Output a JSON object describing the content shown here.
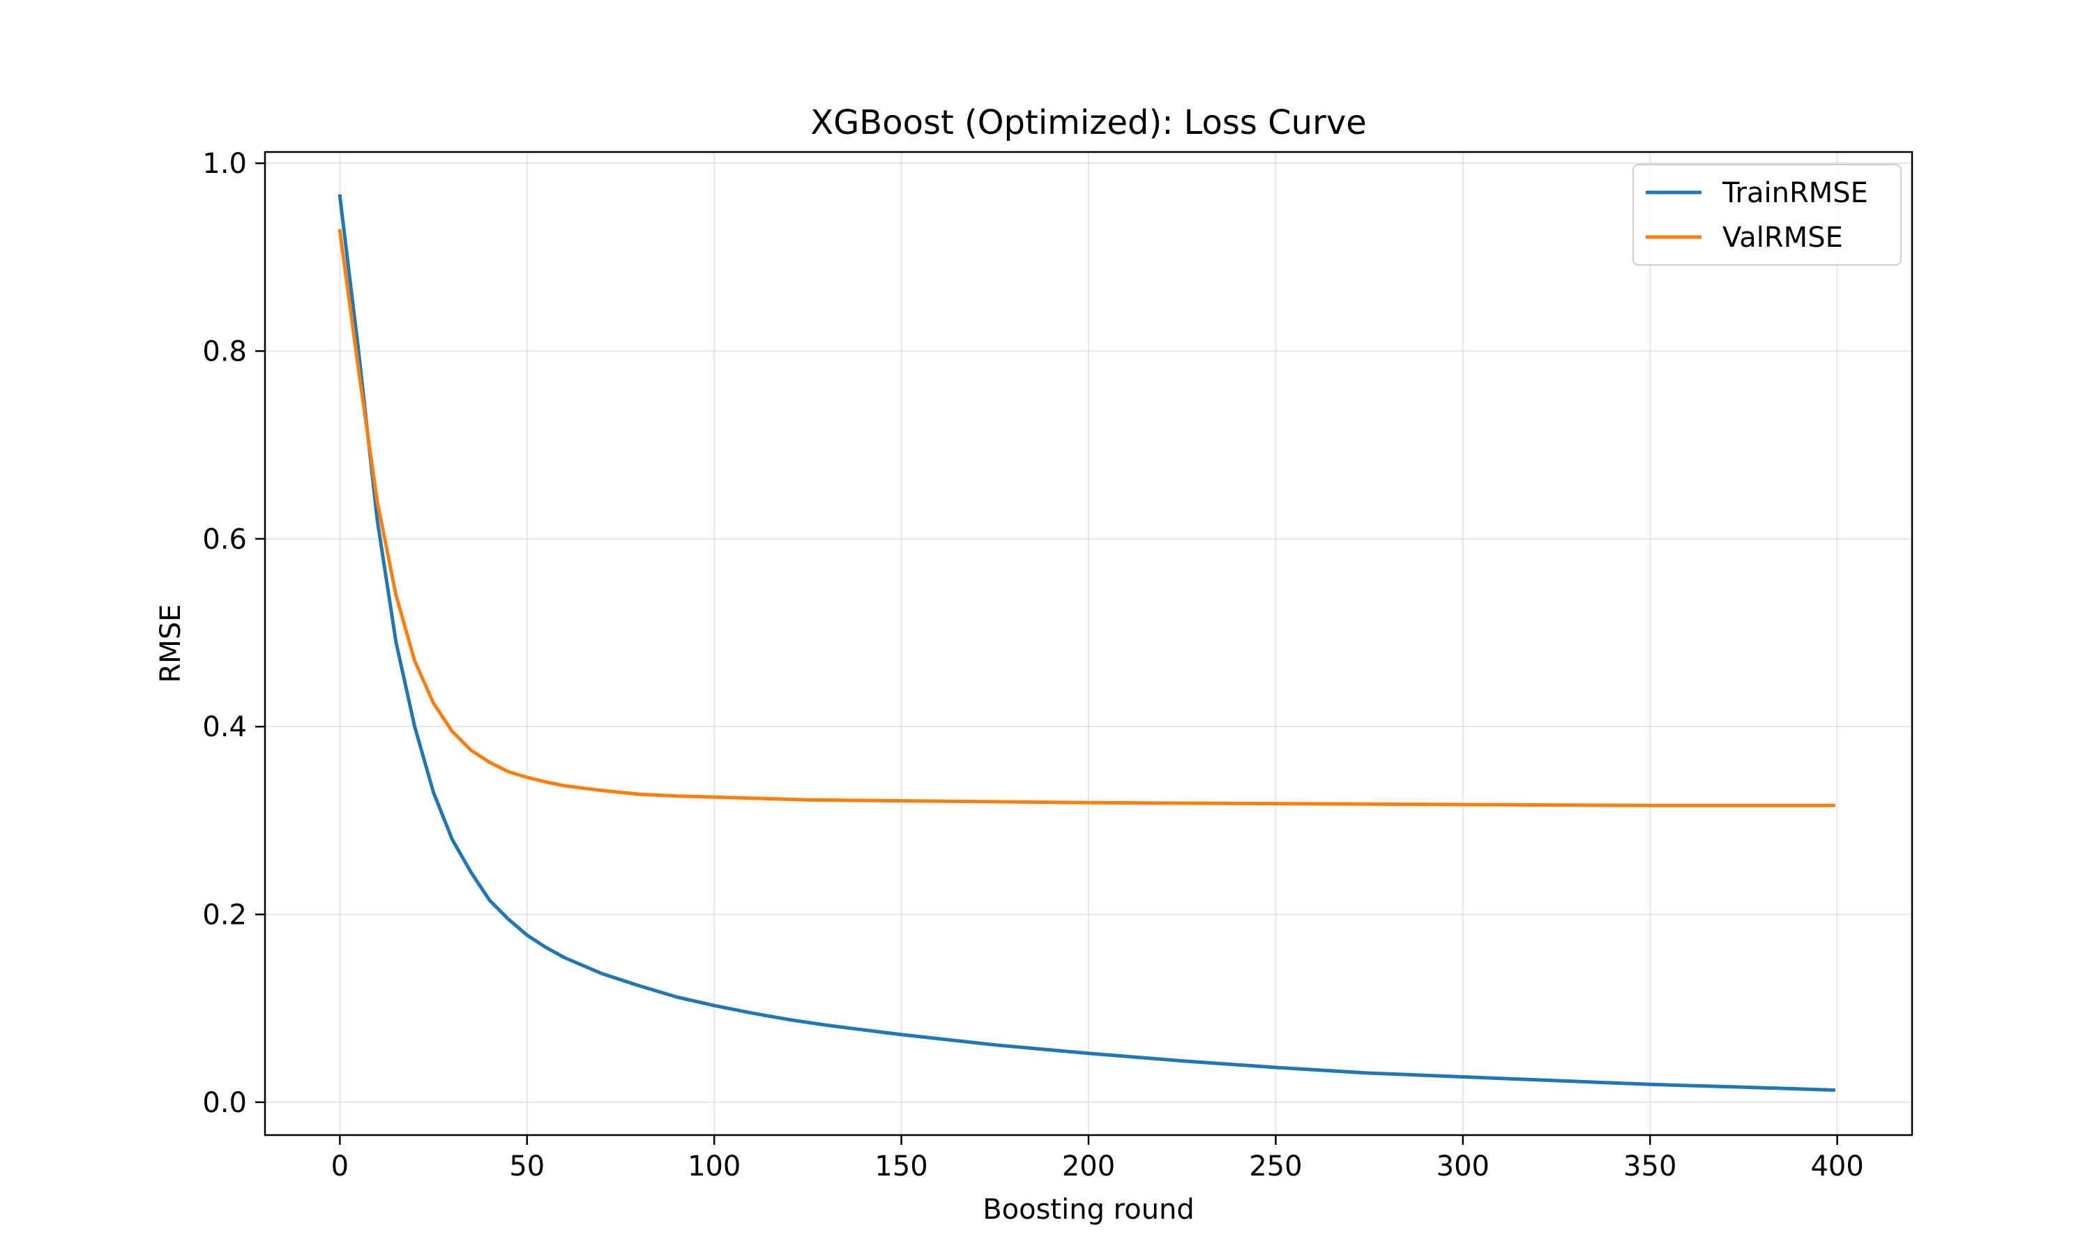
{
  "chart_data": {
    "type": "line",
    "title": "XGBoost (Optimized): Loss Curve",
    "xlabel": "Boosting round",
    "ylabel": "RMSE",
    "xlim": [
      -20,
      420
    ],
    "ylim": [
      -0.035,
      1.012
    ],
    "xticks": [
      0,
      50,
      100,
      150,
      200,
      250,
      300,
      350,
      400
    ],
    "yticks": [
      0.0,
      0.2,
      0.4,
      0.6,
      0.8,
      1.0
    ],
    "ytick_labels": [
      "0.0",
      "0.2",
      "0.4",
      "0.6",
      "0.8",
      "1.0"
    ],
    "grid": true,
    "legend_position": "top-right",
    "series": [
      {
        "name": "TrainRMSE",
        "color": "#1f77b4",
        "x": [
          0,
          5,
          10,
          15,
          20,
          25,
          30,
          35,
          40,
          45,
          50,
          55,
          60,
          70,
          80,
          90,
          100,
          110,
          120,
          130,
          140,
          150,
          175,
          200,
          225,
          250,
          275,
          300,
          325,
          350,
          375,
          399
        ],
        "y": [
          0.965,
          0.8,
          0.62,
          0.49,
          0.4,
          0.33,
          0.28,
          0.245,
          0.215,
          0.195,
          0.178,
          0.165,
          0.154,
          0.137,
          0.124,
          0.112,
          0.103,
          0.095,
          0.088,
          0.082,
          0.077,
          0.072,
          0.061,
          0.052,
          0.044,
          0.037,
          0.031,
          0.027,
          0.023,
          0.019,
          0.016,
          0.013
        ]
      },
      {
        "name": "ValRMSE",
        "color": "#ff7f0e",
        "x": [
          0,
          5,
          10,
          15,
          20,
          25,
          30,
          35,
          40,
          45,
          50,
          55,
          60,
          70,
          80,
          90,
          100,
          125,
          150,
          175,
          200,
          250,
          300,
          350,
          399
        ],
        "y": [
          0.928,
          0.78,
          0.64,
          0.54,
          0.47,
          0.425,
          0.395,
          0.375,
          0.362,
          0.352,
          0.346,
          0.341,
          0.337,
          0.332,
          0.328,
          0.326,
          0.325,
          0.322,
          0.321,
          0.32,
          0.319,
          0.318,
          0.317,
          0.316,
          0.316
        ]
      }
    ]
  }
}
